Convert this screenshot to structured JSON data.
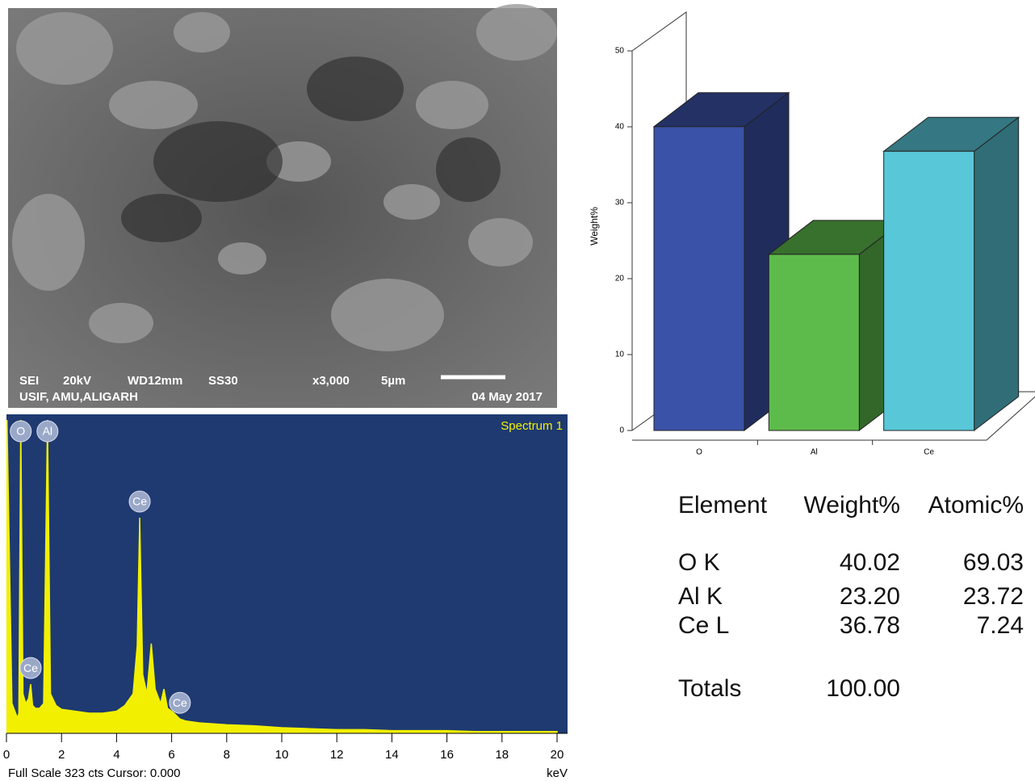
{
  "sem": {
    "labels": [
      "SEI",
      "20kV",
      "WD12mm",
      "SS30",
      "x3,000",
      "5µm"
    ],
    "institution": "USIF, AMU,ALIGARH",
    "date": "04 May 2017"
  },
  "chart_data": [
    {
      "type": "bar",
      "categories": [
        "O",
        "Al",
        "Ce"
      ],
      "values": [
        40.02,
        23.2,
        36.78
      ],
      "colors": [
        "#3a52a8",
        "#5dbb4b",
        "#58c7d8"
      ],
      "ylabel": "Weight%",
      "ylim": [
        0,
        50
      ],
      "yticks": [
        0,
        10,
        20,
        30,
        40,
        50
      ]
    },
    {
      "type": "line",
      "title": "Spectrum 1",
      "xlabel": "keV",
      "footer": "Full Scale 323 cts Cursor: 0.000",
      "color": "#f2f000",
      "x": [
        0.02,
        0.2,
        0.4,
        0.45,
        0.52,
        0.6,
        0.7,
        0.8,
        0.88,
        0.95,
        1.05,
        1.2,
        1.35,
        1.49,
        1.6,
        1.8,
        2.0,
        2.5,
        3.0,
        3.5,
        4.0,
        4.3,
        4.6,
        4.75,
        4.84,
        4.95,
        5.1,
        5.26,
        5.4,
        5.6,
        5.72,
        5.85,
        6.05,
        6.3,
        6.5,
        7,
        8,
        9,
        10,
        11,
        12,
        13,
        14,
        15,
        16,
        17,
        18,
        19,
        20
      ],
      "values": [
        323,
        30,
        15,
        20,
        323,
        40,
        30,
        35,
        50,
        28,
        25,
        25,
        30,
        323,
        40,
        28,
        24,
        22,
        20,
        20,
        22,
        28,
        40,
        90,
        222,
        60,
        40,
        92,
        45,
        30,
        45,
        25,
        21,
        14,
        12,
        10,
        8,
        7,
        5,
        4,
        3,
        3,
        2,
        2,
        2,
        1,
        1,
        1,
        1
      ],
      "xlim": [
        0,
        20
      ],
      "xticks": [
        0,
        2,
        4,
        6,
        8,
        10,
        12,
        14,
        16,
        18,
        20
      ],
      "ylim": [
        0,
        323
      ],
      "peak_labels": [
        {
          "label": "O",
          "x": 0.52
        },
        {
          "label": "Al",
          "x": 1.49
        },
        {
          "label": "Ce",
          "x": 4.84
        },
        {
          "label": "Ce",
          "x": 0.88
        },
        {
          "label": "Ce",
          "x": 6.3
        }
      ]
    }
  ],
  "table": {
    "header": [
      "Element",
      "Weight%",
      "Atomic%"
    ],
    "rows": [
      [
        "O K",
        "40.02",
        "69.03"
      ],
      [
        "Al K",
        "23.20",
        "23.72"
      ],
      [
        "Ce L",
        "36.78",
        "7.24"
      ]
    ],
    "totals": [
      "Totals",
      "100.00"
    ]
  }
}
